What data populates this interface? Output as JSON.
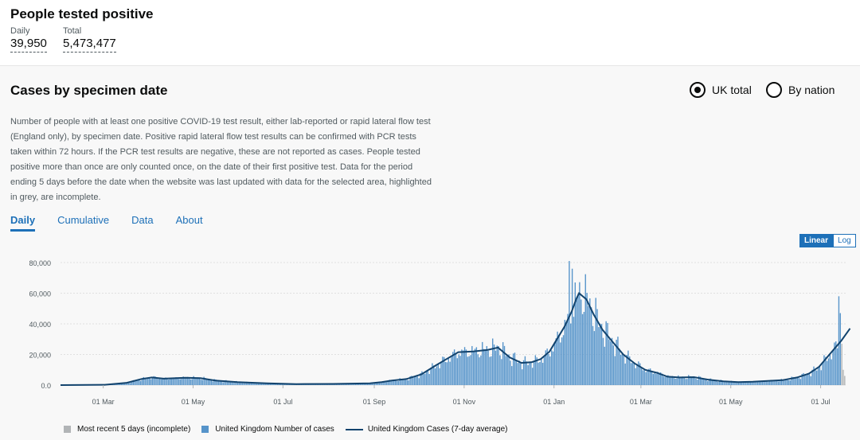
{
  "header": {
    "title": "People tested positive",
    "daily_label": "Daily",
    "daily_value": "39,950",
    "total_label": "Total",
    "total_value": "5,473,477"
  },
  "card": {
    "title": "Cases by specimen date",
    "radio_uk": "UK total",
    "radio_nation": "By nation",
    "description": "Number of people with at least one positive COVID-19 test result, either lab-reported or rapid lateral flow test (England only), by specimen date. Positive rapid lateral flow test results can be confirmed with PCR tests taken within 72 hours. If the PCR test results are negative, these are not reported as cases. People tested positive more than once are only counted once, on the date of their first positive test. Data for the period ending 5 days before the date when the website was last updated with data for the selected area, highlighted in grey, are incomplete.",
    "tabs": [
      "Daily",
      "Cumulative",
      "Data",
      "About"
    ],
    "scale_linear": "Linear",
    "scale_log": "Log"
  },
  "legend": {
    "incomplete": "Most recent 5 days (incomplete)",
    "cases": "United Kingdom Number of cases",
    "average": "United Kingdom Cases (7-day average)"
  },
  "colors": {
    "bars": "#5694ca",
    "line": "#12436d",
    "incomplete": "#b1b4b6",
    "accent": "#1d70b8"
  },
  "chart_data": {
    "type": "bar",
    "title": "Cases by specimen date",
    "ylim": [
      0,
      80000
    ],
    "yticks": [
      "80,000",
      "60,000",
      "40,000",
      "20,000",
      "0.0"
    ],
    "ytick_values": [
      80000,
      60000,
      40000,
      20000,
      0
    ],
    "xticks": [
      "01 Mar",
      "01 May",
      "01 Jul",
      "01 Sep",
      "01 Nov",
      "01 Jan",
      "01 Mar",
      "01 May",
      "01 Jul"
    ],
    "xtick_days": [
      29,
      90,
      151,
      213,
      274,
      335,
      394,
      455,
      516
    ],
    "total_days": 533,
    "average_series": {
      "name": "United Kingdom Cases (7-day average)",
      "points": [
        [
          0,
          0
        ],
        [
          30,
          200
        ],
        [
          45,
          1500
        ],
        [
          55,
          4000
        ],
        [
          62,
          5000
        ],
        [
          70,
          4200
        ],
        [
          85,
          4800
        ],
        [
          95,
          4500
        ],
        [
          105,
          3000
        ],
        [
          120,
          2000
        ],
        [
          140,
          1200
        ],
        [
          160,
          700
        ],
        [
          185,
          800
        ],
        [
          210,
          1200
        ],
        [
          218,
          2000
        ],
        [
          225,
          3000
        ],
        [
          235,
          4000
        ],
        [
          245,
          7000
        ],
        [
          255,
          13000
        ],
        [
          262,
          17000
        ],
        [
          270,
          21500
        ],
        [
          280,
          22000
        ],
        [
          290,
          23000
        ],
        [
          297,
          24500
        ],
        [
          305,
          18000
        ],
        [
          313,
          14500
        ],
        [
          320,
          15000
        ],
        [
          326,
          17000
        ],
        [
          332,
          22000
        ],
        [
          337,
          30000
        ],
        [
          342,
          38000
        ],
        [
          347,
          48000
        ],
        [
          350,
          56000
        ],
        [
          352,
          60000
        ],
        [
          357,
          56000
        ],
        [
          362,
          46000
        ],
        [
          368,
          36000
        ],
        [
          375,
          28000
        ],
        [
          382,
          20000
        ],
        [
          390,
          14000
        ],
        [
          397,
          10000
        ],
        [
          405,
          8000
        ],
        [
          412,
          5500
        ],
        [
          420,
          5000
        ],
        [
          430,
          5200
        ],
        [
          440,
          3500
        ],
        [
          450,
          2500
        ],
        [
          460,
          2000
        ],
        [
          470,
          2200
        ],
        [
          480,
          2700
        ],
        [
          490,
          3200
        ],
        [
          500,
          5000
        ],
        [
          508,
          7500
        ],
        [
          515,
          12000
        ],
        [
          522,
          20000
        ],
        [
          530,
          29000
        ],
        [
          536,
          37000
        ]
      ]
    },
    "bar_series": {
      "name": "United Kingdom Number of cases",
      "note": "daily values vary around the 7-day average"
    },
    "incomplete_days": 5,
    "incomplete_values": [
      58000,
      47000,
      27000,
      10000,
      6000
    ]
  }
}
